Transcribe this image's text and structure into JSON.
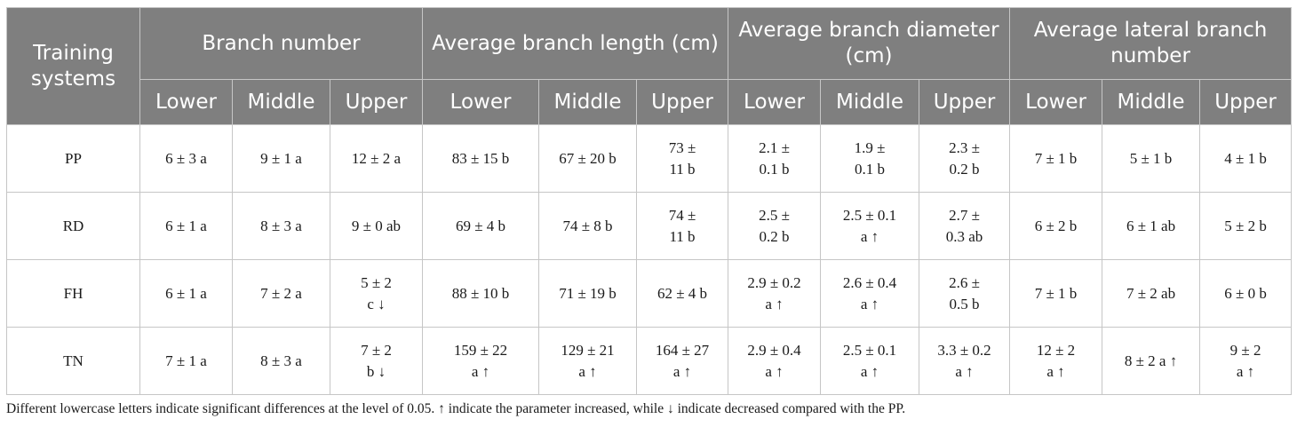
{
  "table": {
    "header_top": [
      "Training systems",
      "Branch number",
      "Average branch length (cm)",
      "Average branch diameter (cm)",
      "Average lateral branch number"
    ],
    "header_sub": [
      "Lower",
      "Middle",
      "Upper"
    ],
    "rows": [
      {
        "label": "PP",
        "cells": [
          "6 ± 3 a",
          "9 ± 1 a",
          "12 ± 2 a",
          "83 ± 15 b",
          "67 ± 20 b",
          "73 ±\n11 b",
          "2.1 ±\n0.1 b",
          "1.9 ±\n0.1 b",
          "2.3 ±\n0.2 b",
          "7 ± 1 b",
          "5 ± 1 b",
          "4 ± 1 b"
        ]
      },
      {
        "label": "RD",
        "cells": [
          "6 ± 1 a",
          "8 ± 3 a",
          "9 ± 0 ab",
          "69 ± 4 b",
          "74 ± 8 b",
          "74 ±\n11 b",
          "2.5 ±\n0.2 b",
          "2.5 ± 0.1\na ↑",
          "2.7 ±\n0.3 ab",
          "6 ± 2 b",
          "6 ± 1 ab",
          "5 ± 2 b"
        ]
      },
      {
        "label": "FH",
        "cells": [
          "6 ± 1 a",
          "7 ± 2 a",
          "5 ± 2\nc ↓",
          "88 ± 10 b",
          "71 ± 19 b",
          "62 ± 4 b",
          "2.9 ± 0.2\na ↑",
          "2.6 ± 0.4\na ↑",
          "2.6 ±\n0.5 b",
          "7 ± 1 b",
          "7 ± 2 ab",
          "6 ± 0 b"
        ]
      },
      {
        "label": "TN",
        "cells": [
          "7 ± 1 a",
          "8 ± 3 a",
          "7 ± 2\nb ↓",
          "159 ± 22\na ↑",
          "129 ± 21\na ↑",
          "164 ± 27\na ↑",
          "2.9 ± 0.4\na ↑",
          "2.5 ± 0.1\na ↑",
          "3.3 ± 0.2\na ↑",
          "12 ± 2\na ↑",
          "8 ± 2 a ↑",
          "9 ± 2\na ↑"
        ]
      }
    ]
  },
  "footnote": "Different lowercase letters indicate significant differences at the level of 0.05. ↑ indicate the parameter increased, while ↓ indicate decreased compared with the PP."
}
